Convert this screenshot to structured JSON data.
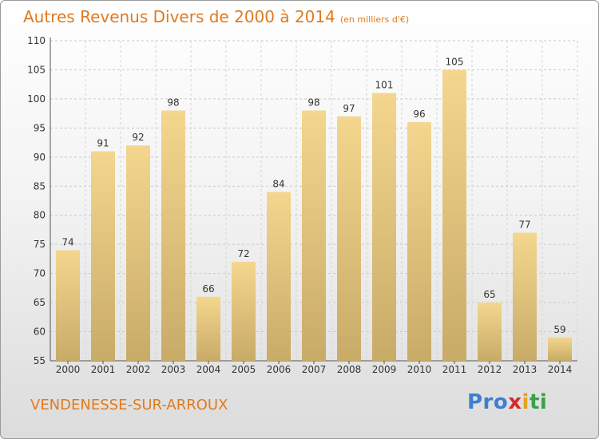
{
  "chart_data": {
    "type": "bar",
    "title": "Autres Revenus Divers de 2000 à 2014",
    "subtitle": "(en milliers d'€)",
    "categories": [
      "2000",
      "2001",
      "2002",
      "2003",
      "2004",
      "2005",
      "2006",
      "2007",
      "2008",
      "2009",
      "2010",
      "2011",
      "2012",
      "2013",
      "2014"
    ],
    "values": [
      74,
      91,
      92,
      98,
      66,
      72,
      84,
      98,
      97,
      101,
      96,
      105,
      65,
      77,
      59
    ],
    "ylim": [
      55,
      110
    ],
    "yticks": [
      55,
      60,
      65,
      70,
      75,
      80,
      85,
      90,
      95,
      100,
      105,
      110
    ],
    "grid": true,
    "bar_color": "#e8c878",
    "text_color": "#e07a1f"
  },
  "footer": {
    "town": "VENDENESSE-SUR-ARROUX",
    "logo_parts": [
      "Pro",
      "x",
      "i",
      "ti"
    ]
  }
}
